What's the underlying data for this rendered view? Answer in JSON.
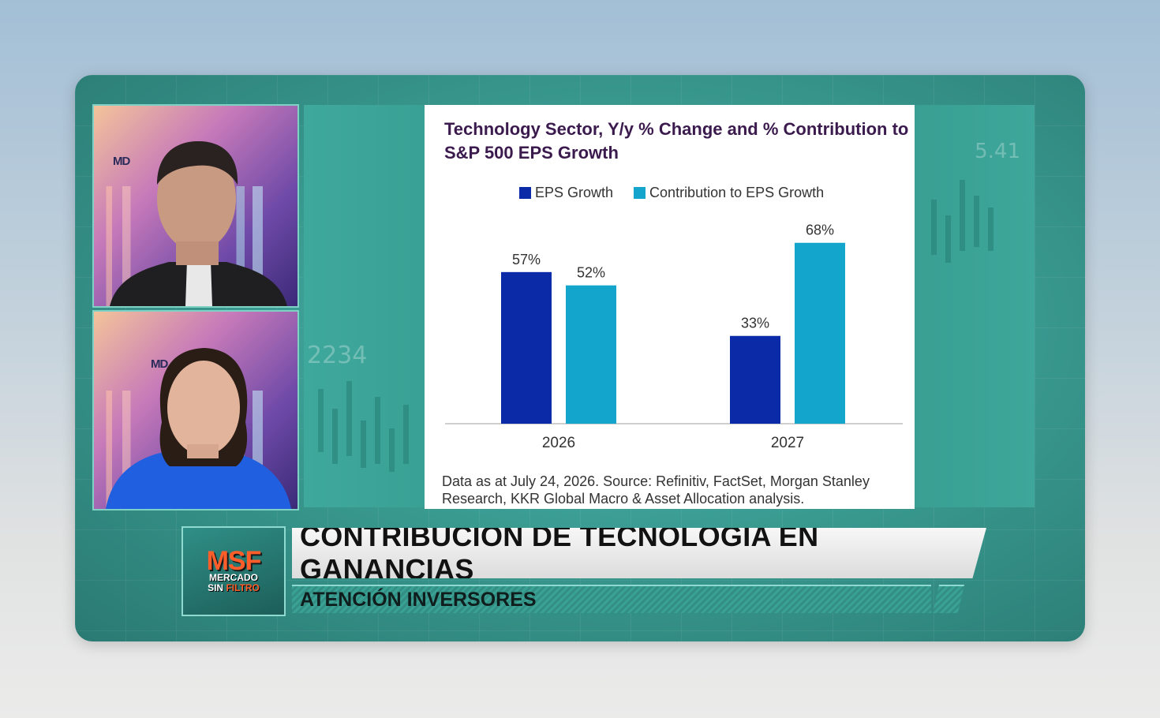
{
  "chart_data": {
    "type": "bar",
    "title": "Technology Sector, Y/y % Change and % Contribution to S&P 500 EPS Growth",
    "categories": [
      "2026",
      "2027"
    ],
    "series": [
      {
        "name": "EPS Growth",
        "values": [
          57,
          33
        ],
        "labels": [
          "57%",
          "33%"
        ],
        "color": "#0a2aa8"
      },
      {
        "name": "Contribution to EPS Growth",
        "values": [
          52,
          68
        ],
        "labels": [
          "52%",
          "68%"
        ],
        "color": "#14a5cc"
      }
    ],
    "ylim": [
      0,
      70
    ],
    "grid": false,
    "legend": "top-center",
    "source": "Data as at July 24, 2026. Source: Refinitiv, FactSet, Morgan Stanley Research, KKR Global Macro & Asset Allocation analysis."
  },
  "lower_third": {
    "headline": "CONTRIBUCIÓN DE TECNOLOGÍA EN GANANCIAS",
    "subheadline": "ATENCIÓN INVERSORES",
    "logo_mark": "MSF",
    "logo_line1": "MERCADO",
    "logo_line2a": "SIN",
    "logo_line2b": "FILTRO"
  },
  "participants": {
    "top_logo": "MD",
    "bottom_logo": "MD"
  },
  "background_deco": {
    "number_right": "5.41",
    "number_left": "2234"
  },
  "colors": {
    "frame_teal": "#3a9c92",
    "eps_growth": "#0a2aa8",
    "contribution": "#14a5cc",
    "title_purple": "#3b1a4e",
    "logo_orange": "#ff5e2b"
  }
}
